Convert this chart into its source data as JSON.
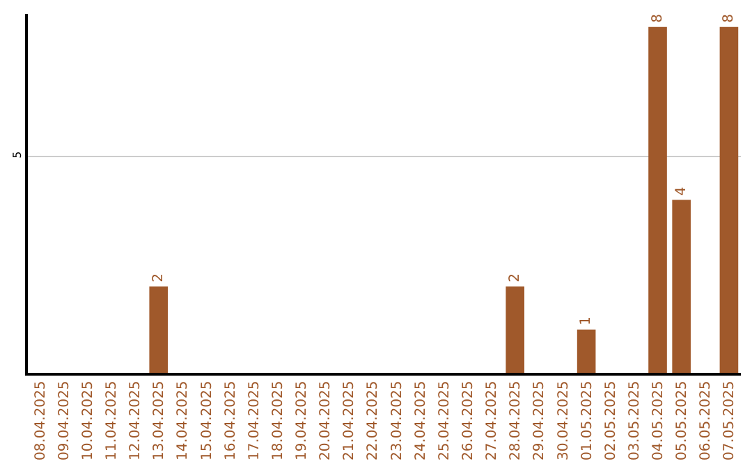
{
  "chart_data": {
    "type": "bar",
    "categories": [
      "08.04.2025",
      "09.04.2025",
      "10.04.2025",
      "11.04.2025",
      "12.04.2025",
      "13.04.2025",
      "14.04.2025",
      "15.04.2025",
      "16.04.2025",
      "17.04.2025",
      "18.04.2025",
      "19.04.2025",
      "20.04.2025",
      "21.04.2025",
      "22.04.2025",
      "23.04.2025",
      "24.04.2025",
      "25.04.2025",
      "26.04.2025",
      "27.04.2025",
      "28.04.2025",
      "29.04.2025",
      "30.04.2025",
      "01.05.2025",
      "02.05.2025",
      "03.05.2025",
      "04.05.2025",
      "05.05.2025",
      "06.05.2025",
      "07.05.2025"
    ],
    "values": [
      0,
      0,
      0,
      0,
      0,
      2,
      0,
      0,
      0,
      0,
      0,
      0,
      0,
      0,
      0,
      0,
      0,
      0,
      0,
      0,
      2,
      0,
      0,
      1,
      0,
      0,
      8,
      4,
      0,
      8
    ],
    "value_labels": [
      null,
      null,
      null,
      null,
      null,
      "2",
      null,
      null,
      null,
      null,
      null,
      null,
      null,
      null,
      null,
      null,
      null,
      null,
      null,
      null,
      "2",
      null,
      null,
      "1",
      null,
      null,
      "8",
      "4",
      null,
      "8"
    ],
    "color": "#a0592b",
    "ylim": [
      0,
      8.3
    ],
    "yticks": [
      5
    ],
    "grid": "y",
    "legend": false
  }
}
